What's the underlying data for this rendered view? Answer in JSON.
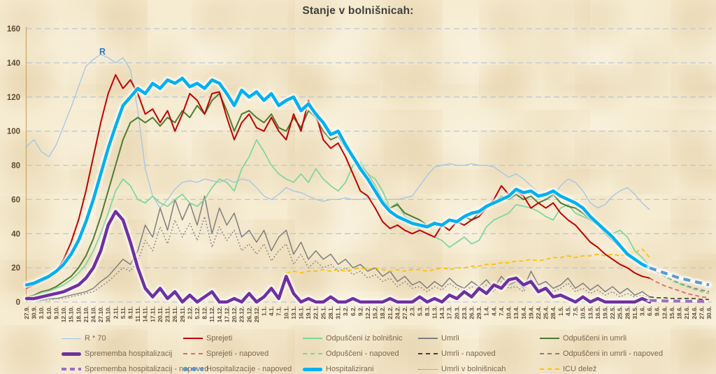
{
  "title": "Stanje v bolnišnicah:",
  "chart_data": {
    "type": "line",
    "title": "Stanje v bolnišnicah:",
    "ylim": [
      0,
      160
    ],
    "y_step": 20,
    "grid": true,
    "legend_position": "bottom",
    "annotations": [
      {
        "text": "R",
        "x": 142,
        "y": 78,
        "color": "#2e75b6"
      }
    ],
    "x_labels": [
      "27.9.",
      "30.9.",
      "3.10.",
      "6.10.",
      "9.10.",
      "12.10.",
      "15.10.",
      "18.10.",
      "21.10.",
      "24.10.",
      "27.10.",
      "30.10.",
      "2.11.",
      "5.11.",
      "8.11.",
      "11.11.",
      "14.11.",
      "17.11.",
      "20.11.",
      "23.11.",
      "26.11.",
      "29.11.",
      "2.12.",
      "5.12.",
      "8.12.",
      "11.12.",
      "14.12.",
      "17.12.",
      "20.12.",
      "23.12.",
      "26.12.",
      "29.12.",
      "1.1.",
      "4.1.",
      "7.1.",
      "10.1.",
      "13.1.",
      "16.1.",
      "19.1.",
      "22.1.",
      "25.1.",
      "28.1.",
      "31.1.",
      "3.2.",
      "6.2.",
      "9.2.",
      "12.2.",
      "15.2.",
      "18.2.",
      "21.2.",
      "24.2.",
      "27.2.",
      "2.3.",
      "5.3.",
      "8.3.",
      "11.3.",
      "14.3.",
      "17.3.",
      "20.3.",
      "23.3.",
      "26.3.",
      "29.3.",
      "1.4.",
      "4.4.",
      "7.4.",
      "10.4.",
      "13.4.",
      "16.4.",
      "19.4.",
      "22.4.",
      "25.4.",
      "28.4.",
      "1.5.",
      "4.5.",
      "7.5.",
      "10.5.",
      "13.5.",
      "16.5.",
      "19.5.",
      "22.5.",
      "25.5.",
      "28.5.",
      "31.5.",
      "3.6.",
      "6.6.",
      "9.6.",
      "12.6.",
      "15.6.",
      "18.6.",
      "21.6.",
      "24.6.",
      "27.6.",
      "30.6."
    ],
    "series": [
      {
        "id": "r70",
        "name": "R * 70",
        "color": "#9dc3e6",
        "width": 1.2,
        "dash": "solid",
        "glow": false,
        "start": 0,
        "values": [
          91,
          95,
          88,
          85,
          92,
          103,
          114,
          126,
          138,
          142,
          145,
          143,
          140,
          143,
          136,
          112,
          78,
          62,
          55,
          60,
          66,
          70,
          71,
          70,
          72,
          71,
          70,
          72,
          70,
          72,
          71,
          67,
          62,
          60,
          63,
          67,
          65,
          64,
          62,
          60,
          59,
          60,
          60,
          61,
          60,
          60,
          61,
          60,
          60,
          60,
          60,
          61,
          62,
          68,
          74,
          79,
          80,
          81,
          80,
          80,
          81,
          80,
          80,
          79,
          76,
          73,
          75,
          72,
          68,
          64,
          60,
          62,
          68,
          72,
          70,
          65,
          58,
          55,
          57,
          62,
          65,
          67,
          63,
          58,
          54
        ]
      },
      {
        "id": "sprejeti",
        "name": "Sprejeti",
        "color": "#c00000",
        "width": 2,
        "dash": "solid",
        "glow": false,
        "start": 0,
        "values": [
          8,
          10,
          12,
          14,
          18,
          25,
          35,
          48,
          65,
          85,
          105,
          122,
          133,
          125,
          130,
          122,
          110,
          113,
          105,
          112,
          100,
          110,
          122,
          118,
          110,
          122,
          123,
          108,
          95,
          105,
          110,
          102,
          100,
          108,
          100,
          95,
          110,
          100,
          118,
          110,
          95,
          90,
          93,
          85,
          75,
          65,
          62,
          55,
          47,
          43,
          45,
          42,
          40,
          42,
          40,
          38,
          45,
          42,
          47,
          45,
          48,
          50,
          55,
          60,
          68,
          63,
          65,
          62,
          55,
          58,
          55,
          58,
          52,
          48,
          45,
          40,
          35,
          32,
          28,
          25,
          22,
          20,
          17,
          15,
          14
        ]
      },
      {
        "id": "odpusceni",
        "name": "Odpuščeni iz bolnišnic",
        "color": "#7bd69c",
        "width": 1.7,
        "dash": "solid",
        "glow": false,
        "start": 0,
        "values": [
          3,
          4,
          5,
          6,
          8,
          10,
          13,
          17,
          22,
          30,
          40,
          52,
          65,
          72,
          68,
          60,
          58,
          62,
          58,
          56,
          60,
          63,
          58,
          56,
          60,
          67,
          72,
          70,
          65,
          78,
          85,
          95,
          88,
          80,
          75,
          72,
          70,
          75,
          70,
          78,
          72,
          68,
          65,
          70,
          80,
          82,
          75,
          72,
          65,
          55,
          58,
          50,
          48,
          42,
          40,
          38,
          36,
          32,
          35,
          38,
          34,
          36,
          44,
          48,
          50,
          52,
          57,
          56,
          55,
          53,
          50,
          48,
          55,
          57,
          52,
          50,
          48,
          45,
          42,
          40,
          42,
          38,
          30,
          26,
          21
        ]
      },
      {
        "id": "umrli",
        "name": "Umrli",
        "color": "#7f7f7f",
        "width": 1.5,
        "dash": "solid",
        "glow": false,
        "start": 0,
        "values": [
          1,
          2,
          1,
          2,
          2,
          3,
          4,
          5,
          6,
          8,
          12,
          15,
          20,
          25,
          22,
          30,
          45,
          38,
          55,
          42,
          60,
          48,
          58,
          45,
          62,
          40,
          55,
          45,
          52,
          38,
          42,
          35,
          42,
          30,
          38,
          42,
          28,
          35,
          25,
          30,
          25,
          28,
          22,
          25,
          20,
          22,
          18,
          20,
          15,
          18,
          12,
          15,
          10,
          12,
          8,
          12,
          9,
          14,
          10,
          8,
          12,
          9,
          13,
          8,
          15,
          10,
          12,
          8,
          18,
          10,
          12,
          8,
          10,
          14,
          8,
          11,
          7,
          10,
          6,
          9,
          5,
          8,
          4,
          6,
          3
        ]
      },
      {
        "id": "odpusceni_umrli",
        "name": "Odpuščeni in umrli",
        "color": "#4e7b31",
        "width": 2,
        "dash": "solid",
        "glow": false,
        "start": 0,
        "values": [
          3,
          4,
          6,
          7,
          9,
          12,
          15,
          20,
          27,
          37,
          50,
          65,
          80,
          95,
          105,
          108,
          105,
          108,
          103,
          108,
          105,
          112,
          108,
          115,
          110,
          118,
          122,
          112,
          100,
          110,
          112,
          108,
          105,
          110,
          102,
          100,
          108,
          102,
          112,
          108,
          100,
          95,
          97,
          90,
          85,
          80,
          75,
          68,
          60,
          55,
          57,
          52,
          50,
          48,
          45,
          47,
          44,
          48,
          46,
          50,
          48,
          52,
          55,
          58,
          62,
          60,
          63,
          60,
          62,
          58,
          60,
          63,
          58,
          56,
          55,
          52,
          48,
          45,
          40,
          36,
          32,
          28,
          25,
          22,
          20
        ]
      },
      {
        "id": "sprememba",
        "name": "Sprememba hospitalizacij",
        "color": "#7030a0",
        "width": 4.5,
        "dash": "solid",
        "glow": true,
        "start": 0,
        "values": [
          2,
          2,
          3,
          4,
          5,
          6,
          8,
          10,
          14,
          20,
          30,
          45,
          53,
          48,
          35,
          20,
          8,
          3,
          8,
          2,
          6,
          0,
          4,
          0,
          3,
          6,
          0,
          0,
          2,
          0,
          5,
          0,
          3,
          8,
          2,
          15,
          5,
          0,
          2,
          0,
          0,
          3,
          0,
          0,
          2,
          0,
          0,
          0,
          0,
          2,
          0,
          0,
          0,
          3,
          0,
          2,
          0,
          4,
          2,
          6,
          3,
          8,
          5,
          10,
          8,
          13,
          14,
          10,
          12,
          6,
          8,
          3,
          4,
          2,
          0,
          3,
          0,
          2,
          0,
          0,
          0,
          0,
          0,
          2,
          0
        ]
      },
      {
        "id": "umrli_bolnisnice",
        "name": "Umrli v bolnišnicah",
        "color": "#7f7f7f",
        "width": 1.4,
        "dash": "dotted",
        "glow": false,
        "start": 0,
        "values": [
          1,
          1,
          1,
          1,
          2,
          2,
          3,
          4,
          5,
          6,
          9,
          12,
          16,
          20,
          18,
          24,
          36,
          30,
          44,
          34,
          48,
          38,
          46,
          36,
          50,
          32,
          44,
          36,
          42,
          30,
          34,
          28,
          34,
          24,
          30,
          34,
          22,
          28,
          20,
          24,
          20,
          22,
          18,
          20,
          16,
          18,
          14,
          16,
          12,
          14,
          9,
          12,
          8,
          9,
          6,
          9,
          7,
          11,
          8,
          6,
          9,
          7,
          10,
          6,
          12,
          8,
          9,
          6,
          14,
          8,
          9,
          6,
          8,
          11,
          6,
          8,
          5,
          7,
          4,
          6,
          3,
          5,
          3,
          4,
          2
        ]
      },
      {
        "id": "hospitalizirani",
        "name": "Hospitalizirani",
        "color": "#00b0f0",
        "width": 4.5,
        "dash": "solid",
        "glow": true,
        "start": 0,
        "values": [
          10,
          11,
          13,
          15,
          18,
          22,
          28,
          36,
          47,
          60,
          75,
          90,
          103,
          115,
          120,
          125,
          122,
          128,
          125,
          130,
          128,
          131,
          126,
          128,
          125,
          130,
          128,
          122,
          115,
          124,
          120,
          123,
          118,
          122,
          115,
          118,
          120,
          112,
          116,
          110,
          105,
          98,
          100,
          92,
          85,
          78,
          72,
          65,
          58,
          53,
          50,
          48,
          46,
          45,
          44,
          46,
          45,
          48,
          47,
          50,
          52,
          53,
          56,
          58,
          60,
          62,
          66,
          64,
          65,
          62,
          63,
          65,
          62,
          60,
          58,
          55,
          50,
          46,
          42,
          38,
          33,
          28,
          25,
          22,
          20
        ]
      },
      {
        "id": "icu",
        "name": "ICU delež",
        "color": "#ffc000",
        "width": 1.8,
        "dash": "dashed",
        "glow": false,
        "start": 35,
        "values": [
          17,
          18,
          17,
          18,
          18,
          19,
          18,
          19,
          18,
          19,
          20,
          19,
          20,
          19,
          18,
          19,
          18,
          19,
          19,
          18,
          19,
          20,
          19,
          20,
          20,
          21,
          21,
          22,
          22,
          23,
          23,
          24,
          24,
          25,
          24,
          25,
          26,
          26,
          27,
          26,
          27,
          27,
          28,
          27,
          28,
          27,
          28,
          29,
          31,
          26
        ]
      },
      {
        "id": "sprejeti_napoved",
        "name": "Sprejeti - napoved",
        "color": "#de6a6a",
        "width": 1.8,
        "dash": "dashed",
        "glow": false,
        "start": 84,
        "values": [
          14,
          11.5,
          9.5,
          8,
          6.5,
          5,
          4,
          3,
          2.5
        ]
      },
      {
        "id": "odpusceni_napoved",
        "name": "Odpuščeni - napoved",
        "color": "#7bd69c",
        "width": 1.8,
        "dash": "dashed",
        "glow": false,
        "start": 84,
        "values": [
          21,
          18,
          15,
          12.5,
          10.5,
          9,
          7.5,
          6,
          5
        ]
      },
      {
        "id": "umrli_napoved",
        "name": "Umrli - napoved",
        "color": "#404040",
        "width": 1.6,
        "dash": "dashed",
        "glow": false,
        "start": 84,
        "values": [
          3,
          2.5,
          2.5,
          2,
          2,
          2,
          2,
          1.5,
          1.5
        ]
      },
      {
        "id": "odpusceni_umrli_napoved",
        "name": "Odpuščeni in umrli - napoved",
        "color": "#7f7f7f",
        "width": 1.7,
        "dash": "dashed",
        "glow": false,
        "start": 84,
        "values": [
          20,
          17.5,
          15,
          13,
          11,
          9.5,
          8,
          7,
          6
        ]
      },
      {
        "id": "sprememba_napoved",
        "name": "Sprememba hospitalizacij - napoved",
        "color": "#9b6fc0",
        "width": 4,
        "dash": "dashed",
        "glow": true,
        "start": 84,
        "values": [
          1,
          0.8,
          0.6,
          0.5,
          0.5,
          0.4,
          0.4,
          0.3,
          0.3
        ]
      },
      {
        "id": "hospitalizacije_napoved",
        "name": "Hospitalizacije - napoved",
        "color": "#5b9bd5",
        "width": 4.2,
        "dash": "dashed",
        "glow": true,
        "start": 84,
        "values": [
          20,
          18.5,
          17,
          15.5,
          14,
          13,
          12,
          11,
          10
        ]
      }
    ]
  },
  "legend": {
    "rows": [
      [
        "r70",
        "sprejeti",
        "odpusceni",
        "umrli",
        "odpusceni_umrli"
      ],
      [
        "sprememba",
        "sprejeti_napoved",
        "odpusceni_napoved",
        "umrli_napoved",
        "odpusceni_umrli_napoved"
      ],
      [
        "sprememba_napoved",
        "hospitalizacije_napoved",
        "hospitalizirani",
        "umrli_bolnisnice",
        "icu"
      ]
    ]
  }
}
